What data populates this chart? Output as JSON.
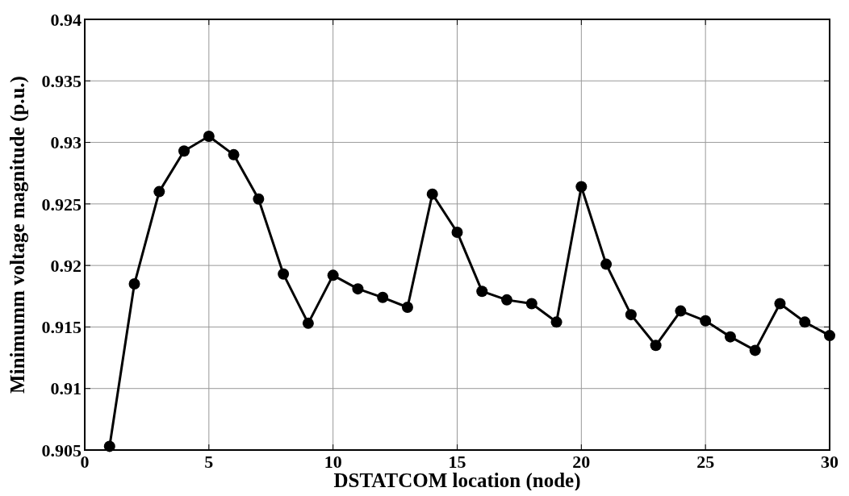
{
  "chart_data": {
    "type": "line",
    "xlabel": "DSTATCOM location (node)",
    "ylabel": "Minimumm voltage magnitude (p.u.)",
    "x": [
      1,
      2,
      3,
      4,
      5,
      6,
      7,
      8,
      9,
      10,
      11,
      12,
      13,
      14,
      15,
      16,
      17,
      18,
      19,
      20,
      21,
      22,
      23,
      24,
      25,
      26,
      27,
      28,
      29,
      30
    ],
    "series": [
      {
        "color": "#000000",
        "values": [
          0.9053,
          0.9185,
          0.926,
          0.9293,
          0.9305,
          0.929,
          0.9254,
          0.9193,
          0.9153,
          0.9192,
          0.9181,
          0.9174,
          0.9166,
          0.9258,
          0.9227,
          0.9179,
          0.9172,
          0.9169,
          0.9154,
          0.9264,
          0.9201,
          0.916,
          0.9135,
          0.9163,
          0.9155,
          0.9142,
          0.9131,
          0.9169,
          0.9154,
          0.9143
        ]
      }
    ],
    "xlim": [
      0,
      30
    ],
    "xticks": [
      0,
      5,
      10,
      15,
      20,
      25,
      30
    ],
    "ylim": [
      0.905,
      0.94
    ],
    "yticks": [
      0.905,
      0.91,
      0.915,
      0.92,
      0.925,
      0.93,
      0.935,
      0.94
    ],
    "grid": true,
    "marker": "circle",
    "line_style": "solid"
  }
}
